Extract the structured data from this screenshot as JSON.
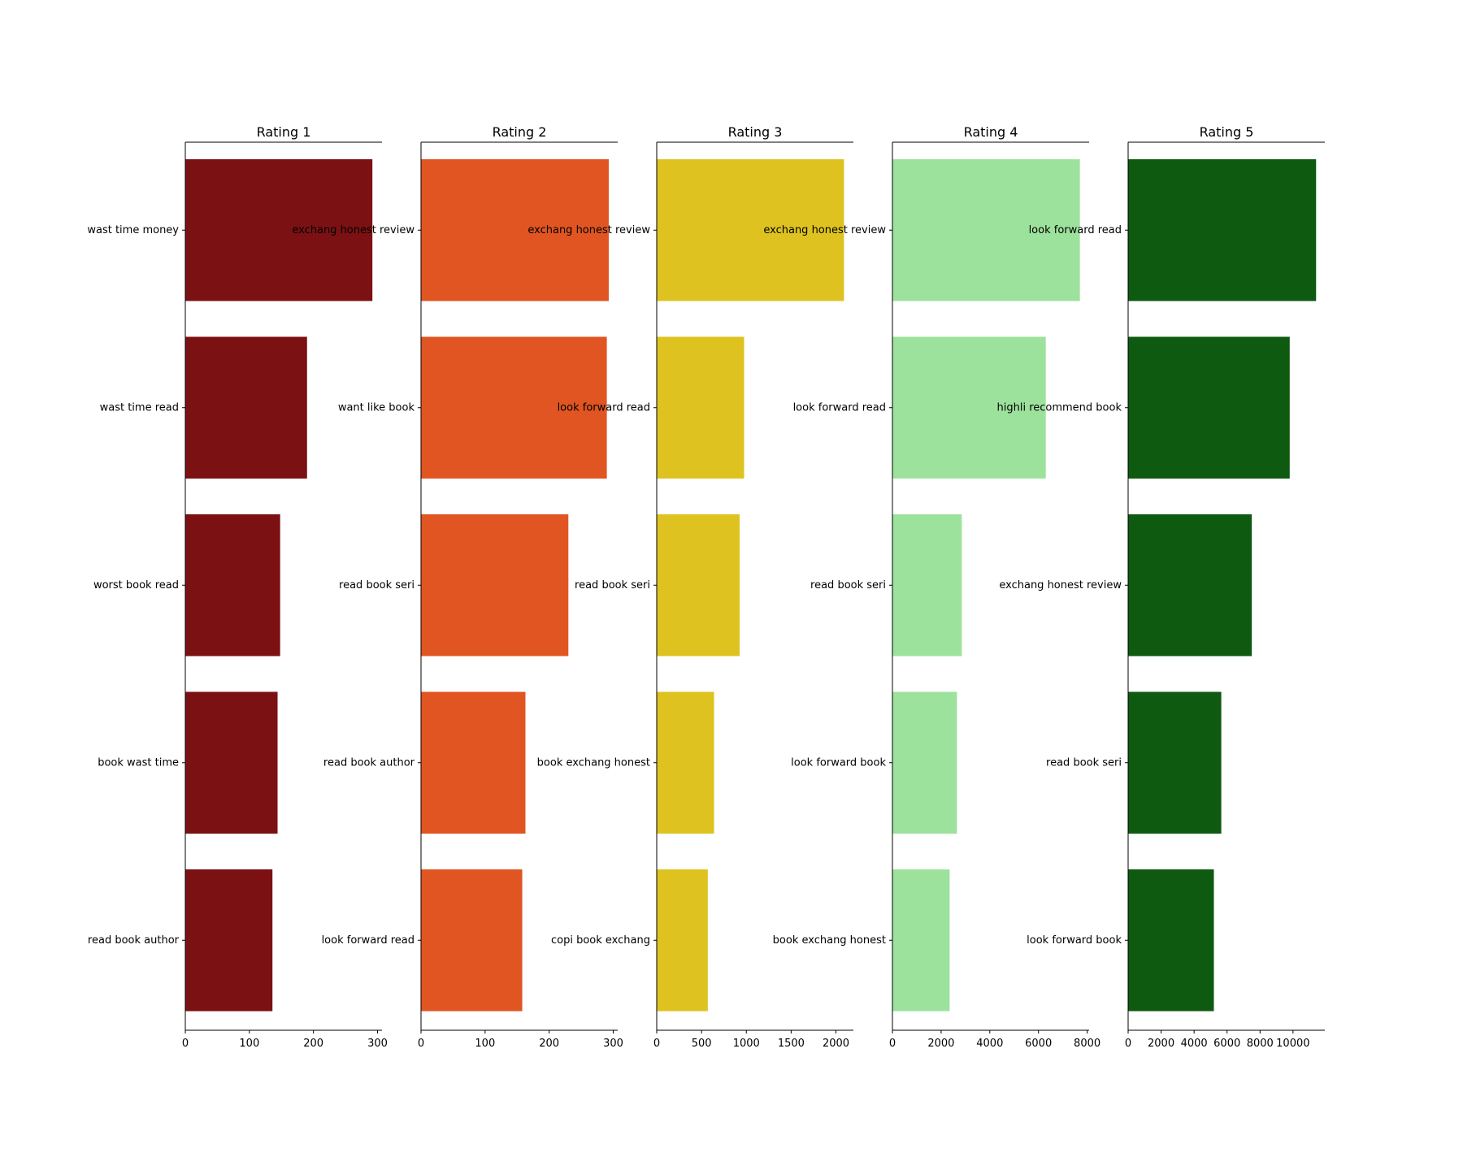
{
  "chart_data": [
    {
      "type": "bar",
      "orientation": "horizontal",
      "title": "Rating 1",
      "color": "#7b1113",
      "categories": [
        "wast time money",
        "wast time read",
        "worst book read",
        "book wast time",
        "read book author"
      ],
      "values": [
        292,
        190,
        148,
        144,
        136
      ],
      "xlim": [
        0,
        307
      ],
      "xticks": [
        0,
        100,
        200,
        300
      ],
      "xtick_labels": [
        "0",
        "100",
        "200",
        "300"
      ]
    },
    {
      "type": "bar",
      "orientation": "horizontal",
      "title": "Rating 2",
      "color": "#e05522",
      "categories": [
        "exchang honest review",
        "want like book",
        "read book seri",
        "read book author",
        "look forward read"
      ],
      "values": [
        293,
        290,
        230,
        163,
        158
      ],
      "xlim": [
        0,
        307
      ],
      "xticks": [
        0,
        100,
        200,
        300
      ],
      "xtick_labels": [
        "0",
        "100",
        "200",
        "300"
      ]
    },
    {
      "type": "bar",
      "orientation": "horizontal",
      "title": "Rating 3",
      "color": "#dec320",
      "categories": [
        "exchang honest review",
        "look forward read",
        "read book seri",
        "book exchang honest",
        "copi book exchang"
      ],
      "values": [
        2090,
        975,
        925,
        640,
        570
      ],
      "xlim": [
        0,
        2195
      ],
      "xticks": [
        0,
        500,
        1000,
        1500,
        2000
      ],
      "xtick_labels": [
        "0",
        "500",
        "1000",
        "1500",
        "2000"
      ]
    },
    {
      "type": "bar",
      "orientation": "horizontal",
      "title": "Rating 4",
      "color": "#9de29c",
      "categories": [
        "exchang honest review",
        "look forward read",
        "read book seri",
        "look forward book",
        "book exchang honest"
      ],
      "values": [
        7700,
        6300,
        2850,
        2650,
        2350
      ],
      "xlim": [
        0,
        8080
      ],
      "xticks": [
        0,
        2000,
        4000,
        6000,
        8000
      ],
      "xtick_labels": [
        "0",
        "2000",
        "4000",
        "6000",
        "8000"
      ]
    },
    {
      "type": "bar",
      "orientation": "horizontal",
      "title": "Rating 5",
      "color": "#0e5a10",
      "categories": [
        "look forward read",
        "highli recommend book",
        "exchang honest review",
        "read book seri",
        "look forward book"
      ],
      "values": [
        11400,
        9800,
        7500,
        5650,
        5200
      ],
      "xlim": [
        0,
        11930
      ],
      "xticks": [
        0,
        2000,
        4000,
        6000,
        8000,
        10000
      ],
      "xtick_labels": [
        "0",
        "2000",
        "4000",
        "6000",
        "8000",
        "10000"
      ]
    }
  ]
}
